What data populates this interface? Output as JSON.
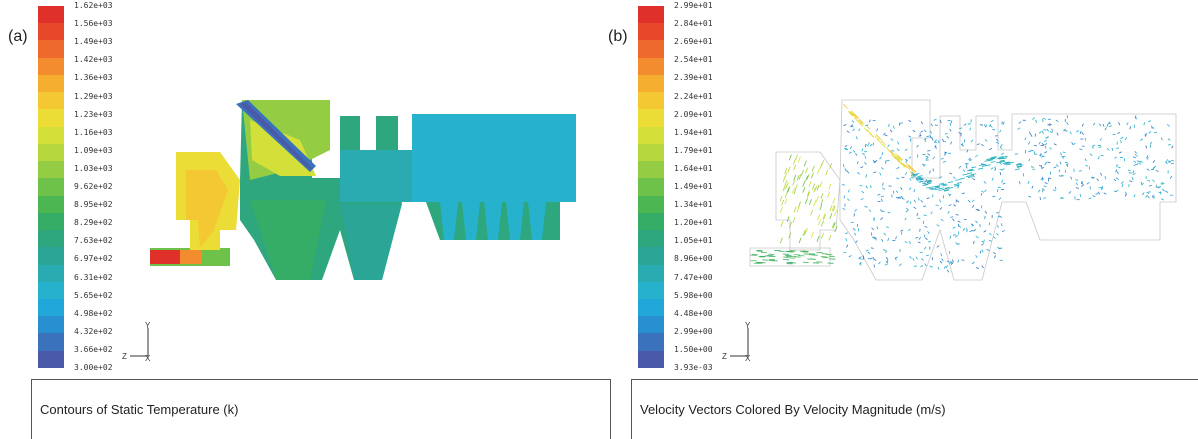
{
  "panels": [
    {
      "label": "(a)",
      "caption": "Contours of Static Temperature (k)",
      "colorbar_ticks": [
        "1.62e+03",
        "1.56e+03",
        "1.49e+03",
        "1.42e+03",
        "1.36e+03",
        "1.29e+03",
        "1.23e+03",
        "1.16e+03",
        "1.09e+03",
        "1.03e+03",
        "9.62e+02",
        "8.95e+02",
        "8.29e+02",
        "7.63e+02",
        "6.97e+02",
        "6.31e+02",
        "5.65e+02",
        "4.98e+02",
        "4.32e+02",
        "3.66e+02",
        "3.00e+02"
      ],
      "axis_labels": {
        "vertical": "Y",
        "horizontal": "Z",
        "origin": "X"
      }
    },
    {
      "label": "(b)",
      "caption": "Velocity Vectors Colored By Velocity Magnitude (m/s)",
      "colorbar_ticks": [
        "2.99e+01",
        "2.84e+01",
        "2.69e+01",
        "2.54e+01",
        "2.39e+01",
        "2.24e+01",
        "2.09e+01",
        "1.94e+01",
        "1.79e+01",
        "1.64e+01",
        "1.49e+01",
        "1.34e+01",
        "1.20e+01",
        "1.05e+01",
        "8.96e+00",
        "7.47e+00",
        "5.98e+00",
        "4.48e+00",
        "2.99e+00",
        "1.50e+00",
        "3.93e-03"
      ],
      "axis_labels": {
        "vertical": "Y",
        "horizontal": "Z",
        "origin": "X"
      }
    }
  ],
  "colormap": [
    "#e0302a",
    "#e8482a",
    "#ee6a2c",
    "#f28c2e",
    "#f5ae30",
    "#f4c832",
    "#ebdc36",
    "#d4e03a",
    "#b6d83e",
    "#94cc44",
    "#6ec24a",
    "#4cb752",
    "#36ad66",
    "#2ea67e",
    "#2aa596",
    "#2aabb2",
    "#26b2cc",
    "#22a8d8",
    "#2890d0",
    "#3a72bc",
    "#4a5aa8"
  ]
}
